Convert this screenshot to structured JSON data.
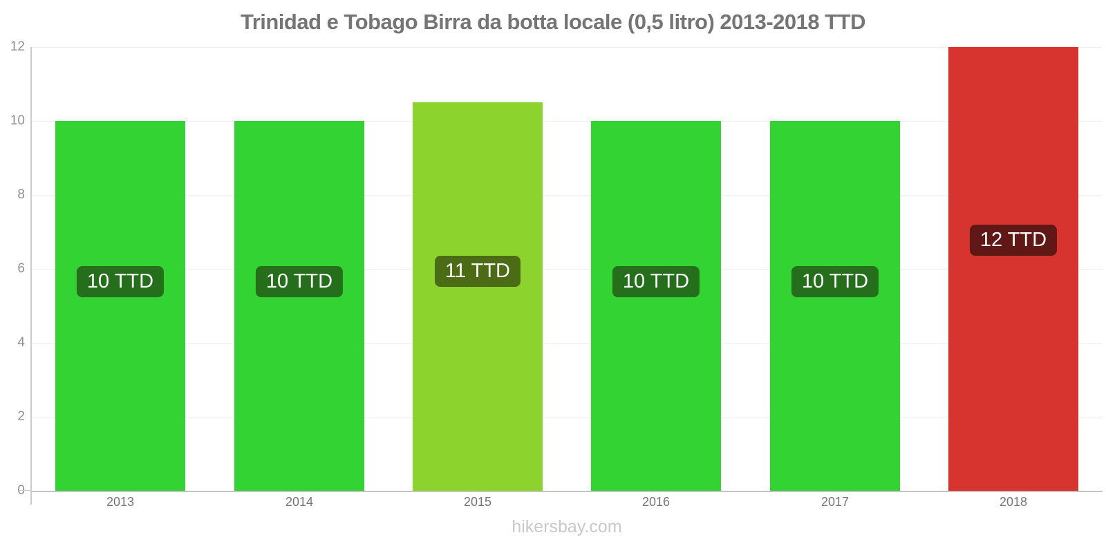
{
  "footer": {
    "text": "hikersbay.com"
  },
  "colors": {
    "title_text": "#757575",
    "axis_line": "#cccccc",
    "baseline": "#c3c3c3",
    "gridline": "#f0f0f0",
    "y_label_text": "#8f8f8f",
    "x_label_text": "#757575",
    "badge_text": "#ffffff",
    "watermark_text": "#c8c8c8"
  },
  "chart_data": {
    "type": "bar",
    "title": "Trinidad e Tobago Birra da botta locale (0,5 litro) 2013-2018 TTD",
    "xlabel": "",
    "ylabel": "",
    "currency": "TTD",
    "categories": [
      "2013",
      "2014",
      "2015",
      "2016",
      "2017",
      "2018"
    ],
    "values": [
      10,
      10,
      10.5,
      10,
      10,
      12
    ],
    "bar_labels": [
      "10 TTD",
      "10 TTD",
      "11 TTD",
      "10 TTD",
      "10 TTD",
      "12 TTD"
    ],
    "bar_colors": [
      "#33d333",
      "#33d333",
      "#8dd32e",
      "#33d333",
      "#33d333",
      "#d8342f"
    ],
    "badge_colors": [
      "#256e1b",
      "#256e1b",
      "#4c6b15",
      "#256e1b",
      "#256e1b",
      "#5f1815"
    ],
    "ylim": [
      0,
      12
    ],
    "yticks": [
      0,
      2,
      4,
      6,
      8,
      10,
      12
    ],
    "grid": true,
    "legend": false
  }
}
